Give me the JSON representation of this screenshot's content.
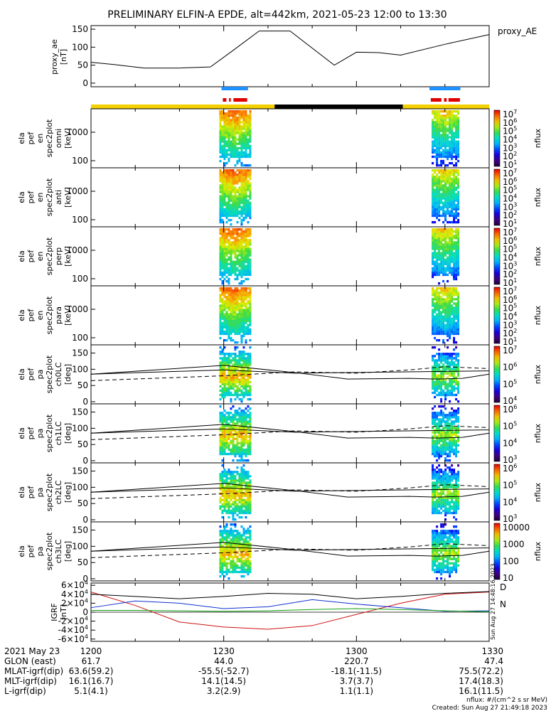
{
  "title": "PRELIMINARY ELFIN-A EPDE, alt=442km, 2021-05-23 12:00 to 13:30",
  "colors": {
    "yellow_bar": "#f5d000",
    "black_bar": "#000000",
    "blue_marker": "#1e90ff",
    "red_marker": "#e00000",
    "bx": "#1030d0",
    "by": "#10a010",
    "bz": "#d01010"
  },
  "chart_data": [
    {
      "type": "line",
      "id": "proxy_ae",
      "ylabel_lines": [
        "proxy_ae",
        "[nT]"
      ],
      "legend": "proxy_AE",
      "yticks": [
        "0",
        "50",
        "100",
        "150"
      ],
      "ylim": [
        -10,
        160
      ],
      "x_minutes": [
        0,
        5,
        12,
        20,
        27,
        32,
        38,
        45,
        55,
        60,
        65,
        70,
        80,
        90
      ],
      "values": [
        58,
        52,
        42,
        42,
        45,
        90,
        145,
        145,
        50,
        86,
        85,
        78,
        108,
        135
      ]
    },
    {
      "type": "heatmap",
      "id": "en_omni",
      "ylabel_lines": [
        "ela",
        "pef",
        "en",
        "spec2plot",
        "omni",
        "[keV]"
      ],
      "yticks": [
        "100",
        "1000"
      ],
      "colorbar": {
        "label": "nflux",
        "ticks": [
          "10",
          "10",
          "10",
          "10",
          "10",
          "10",
          "10"
        ],
        "exps": [
          "1",
          "2",
          "3",
          "4",
          "5",
          "6",
          "7"
        ]
      }
    },
    {
      "type": "heatmap",
      "id": "en_anti",
      "ylabel_lines": [
        "ela",
        "pef",
        "en",
        "spec2plot",
        "anti",
        "[keV]"
      ],
      "yticks": [
        "100",
        "1000"
      ],
      "colorbar": {
        "label": "nflux",
        "ticks": [
          "10",
          "10",
          "10",
          "10",
          "10",
          "10",
          "10"
        ],
        "exps": [
          "1",
          "2",
          "3",
          "4",
          "5",
          "6",
          "7"
        ]
      }
    },
    {
      "type": "heatmap",
      "id": "en_perp",
      "ylabel_lines": [
        "ela",
        "pef",
        "en",
        "spec2plot",
        "perp",
        "[keV]"
      ],
      "yticks": [
        "100",
        "1000"
      ],
      "colorbar": {
        "label": "nflux",
        "ticks": [
          "10",
          "10",
          "10",
          "10",
          "10",
          "10",
          "10"
        ],
        "exps": [
          "1",
          "2",
          "3",
          "4",
          "5",
          "6",
          "7"
        ]
      }
    },
    {
      "type": "heatmap",
      "id": "en_para",
      "ylabel_lines": [
        "ela",
        "pef",
        "en",
        "spec2plot",
        "para",
        "[keV]"
      ],
      "yticks": [
        "100",
        "1000"
      ],
      "colorbar": {
        "label": "nflux",
        "ticks": [
          "10",
          "10",
          "10",
          "10",
          "10",
          "10",
          "10"
        ],
        "exps": [
          "1",
          "2",
          "3",
          "4",
          "5",
          "6",
          "7"
        ]
      }
    },
    {
      "type": "heatmap",
      "id": "pa_ch0",
      "ylabel_lines": [
        "ela",
        "pef",
        "pa",
        "spec2plot",
        "ch0LC",
        "[deg]"
      ],
      "yticks": [
        "0",
        "50",
        "100",
        "150"
      ],
      "colorbar": {
        "label": "nflux",
        "ticks": [
          "10",
          "10",
          "10",
          "10"
        ],
        "exps": [
          "4",
          "5",
          "6",
          "7"
        ]
      }
    },
    {
      "type": "heatmap",
      "id": "pa_ch1",
      "ylabel_lines": [
        "ela",
        "pef",
        "pa",
        "spec2plot",
        "ch1LC",
        "[deg]"
      ],
      "yticks": [
        "0",
        "50",
        "100",
        "150"
      ],
      "colorbar": {
        "label": "nflux",
        "ticks": [
          "10",
          "10",
          "10",
          "10"
        ],
        "exps": [
          "3",
          "4",
          "5",
          "6"
        ]
      }
    },
    {
      "type": "heatmap",
      "id": "pa_ch2",
      "ylabel_lines": [
        "ela",
        "pef",
        "pa",
        "spec2plot",
        "ch2LC",
        "[deg]"
      ],
      "yticks": [
        "0",
        "50",
        "100",
        "150"
      ],
      "colorbar": {
        "label": "nflux",
        "ticks": [
          "10",
          "10",
          "10",
          "10"
        ],
        "exps": [
          "3",
          "4",
          "5",
          "6"
        ]
      }
    },
    {
      "type": "heatmap",
      "id": "pa_ch3",
      "ylabel_lines": [
        "ela",
        "pef",
        "pa",
        "spec2plot",
        "ch3LC",
        "[deg]"
      ],
      "yticks": [
        "0",
        "50",
        "100",
        "150"
      ],
      "colorbar": {
        "label": "nflux",
        "ticks": [
          "10",
          "100",
          "1000",
          "10000"
        ],
        "exps": [
          "",
          "",
          "",
          ""
        ]
      }
    },
    {
      "type": "line",
      "id": "igrf",
      "ylabel_lines": [
        "IGRF",
        "[nT]"
      ],
      "yticks": [
        "-6×10",
        "-4×10",
        "-2×10",
        "0",
        "2×10",
        "4×10",
        "6×10"
      ],
      "ytick_exps": [
        "4",
        "4",
        "4",
        "",
        "4",
        "4",
        "4"
      ],
      "ylim": [
        -65000,
        65000
      ],
      "legend": [
        "D",
        "N"
      ],
      "x_minutes": [
        0,
        10,
        20,
        30,
        40,
        50,
        60,
        70,
        80,
        90
      ],
      "series": [
        {
          "values": [
            45000,
            15000,
            -22000,
            -33000,
            -38000,
            -30000,
            -5000,
            20000,
            40000,
            45000
          ]
        },
        {
          "values": [
            10000,
            25000,
            20000,
            8000,
            12000,
            28000,
            18000,
            10000,
            2000,
            3000
          ]
        },
        {
          "values": [
            4000,
            4000,
            3000,
            2000,
            3000,
            6000,
            8000,
            6000,
            3000,
            1000
          ]
        },
        {
          "values": [
            40000,
            35000,
            30000,
            35000,
            42000,
            40000,
            30000,
            35000,
            42000,
            46000
          ]
        }
      ]
    }
  ],
  "xaxis": {
    "row_labels": [
      "2021 May 23",
      "GLON (east)",
      "MLAT-igrf(dip)",
      "MLT-igrf(dip)",
      "L-igrf(dip)"
    ],
    "ticks": [
      {
        "time": "1200",
        "glon": "61.7",
        "mlat": "63.6(59.2)",
        "mlt": "16.1(16.7)",
        "l": "5.1(4.1)"
      },
      {
        "time": "1230",
        "glon": "44.0",
        "mlat": "-55.5(-52.7)",
        "mlt": "14.1(14.5)",
        "l": "3.2(2.9)"
      },
      {
        "time": "1300",
        "glon": "220.7",
        "mlat": "-18.1(-11.5)",
        "mlt": "3.7(3.7)",
        "l": "1.1(1.1)"
      },
      {
        "time": "1330",
        "glon": "47.4",
        "mlat": "75.5(72.2)",
        "mlt": "17.4(18.3)",
        "l": "16.1(11.5)"
      }
    ]
  },
  "footer": {
    "units": "nflux: #/(cm^2 s sr MeV)",
    "created": "Created: Sun Aug 27 21:49:18 2023",
    "stamp": "Sun Aug 27 14:48:16 2023"
  }
}
